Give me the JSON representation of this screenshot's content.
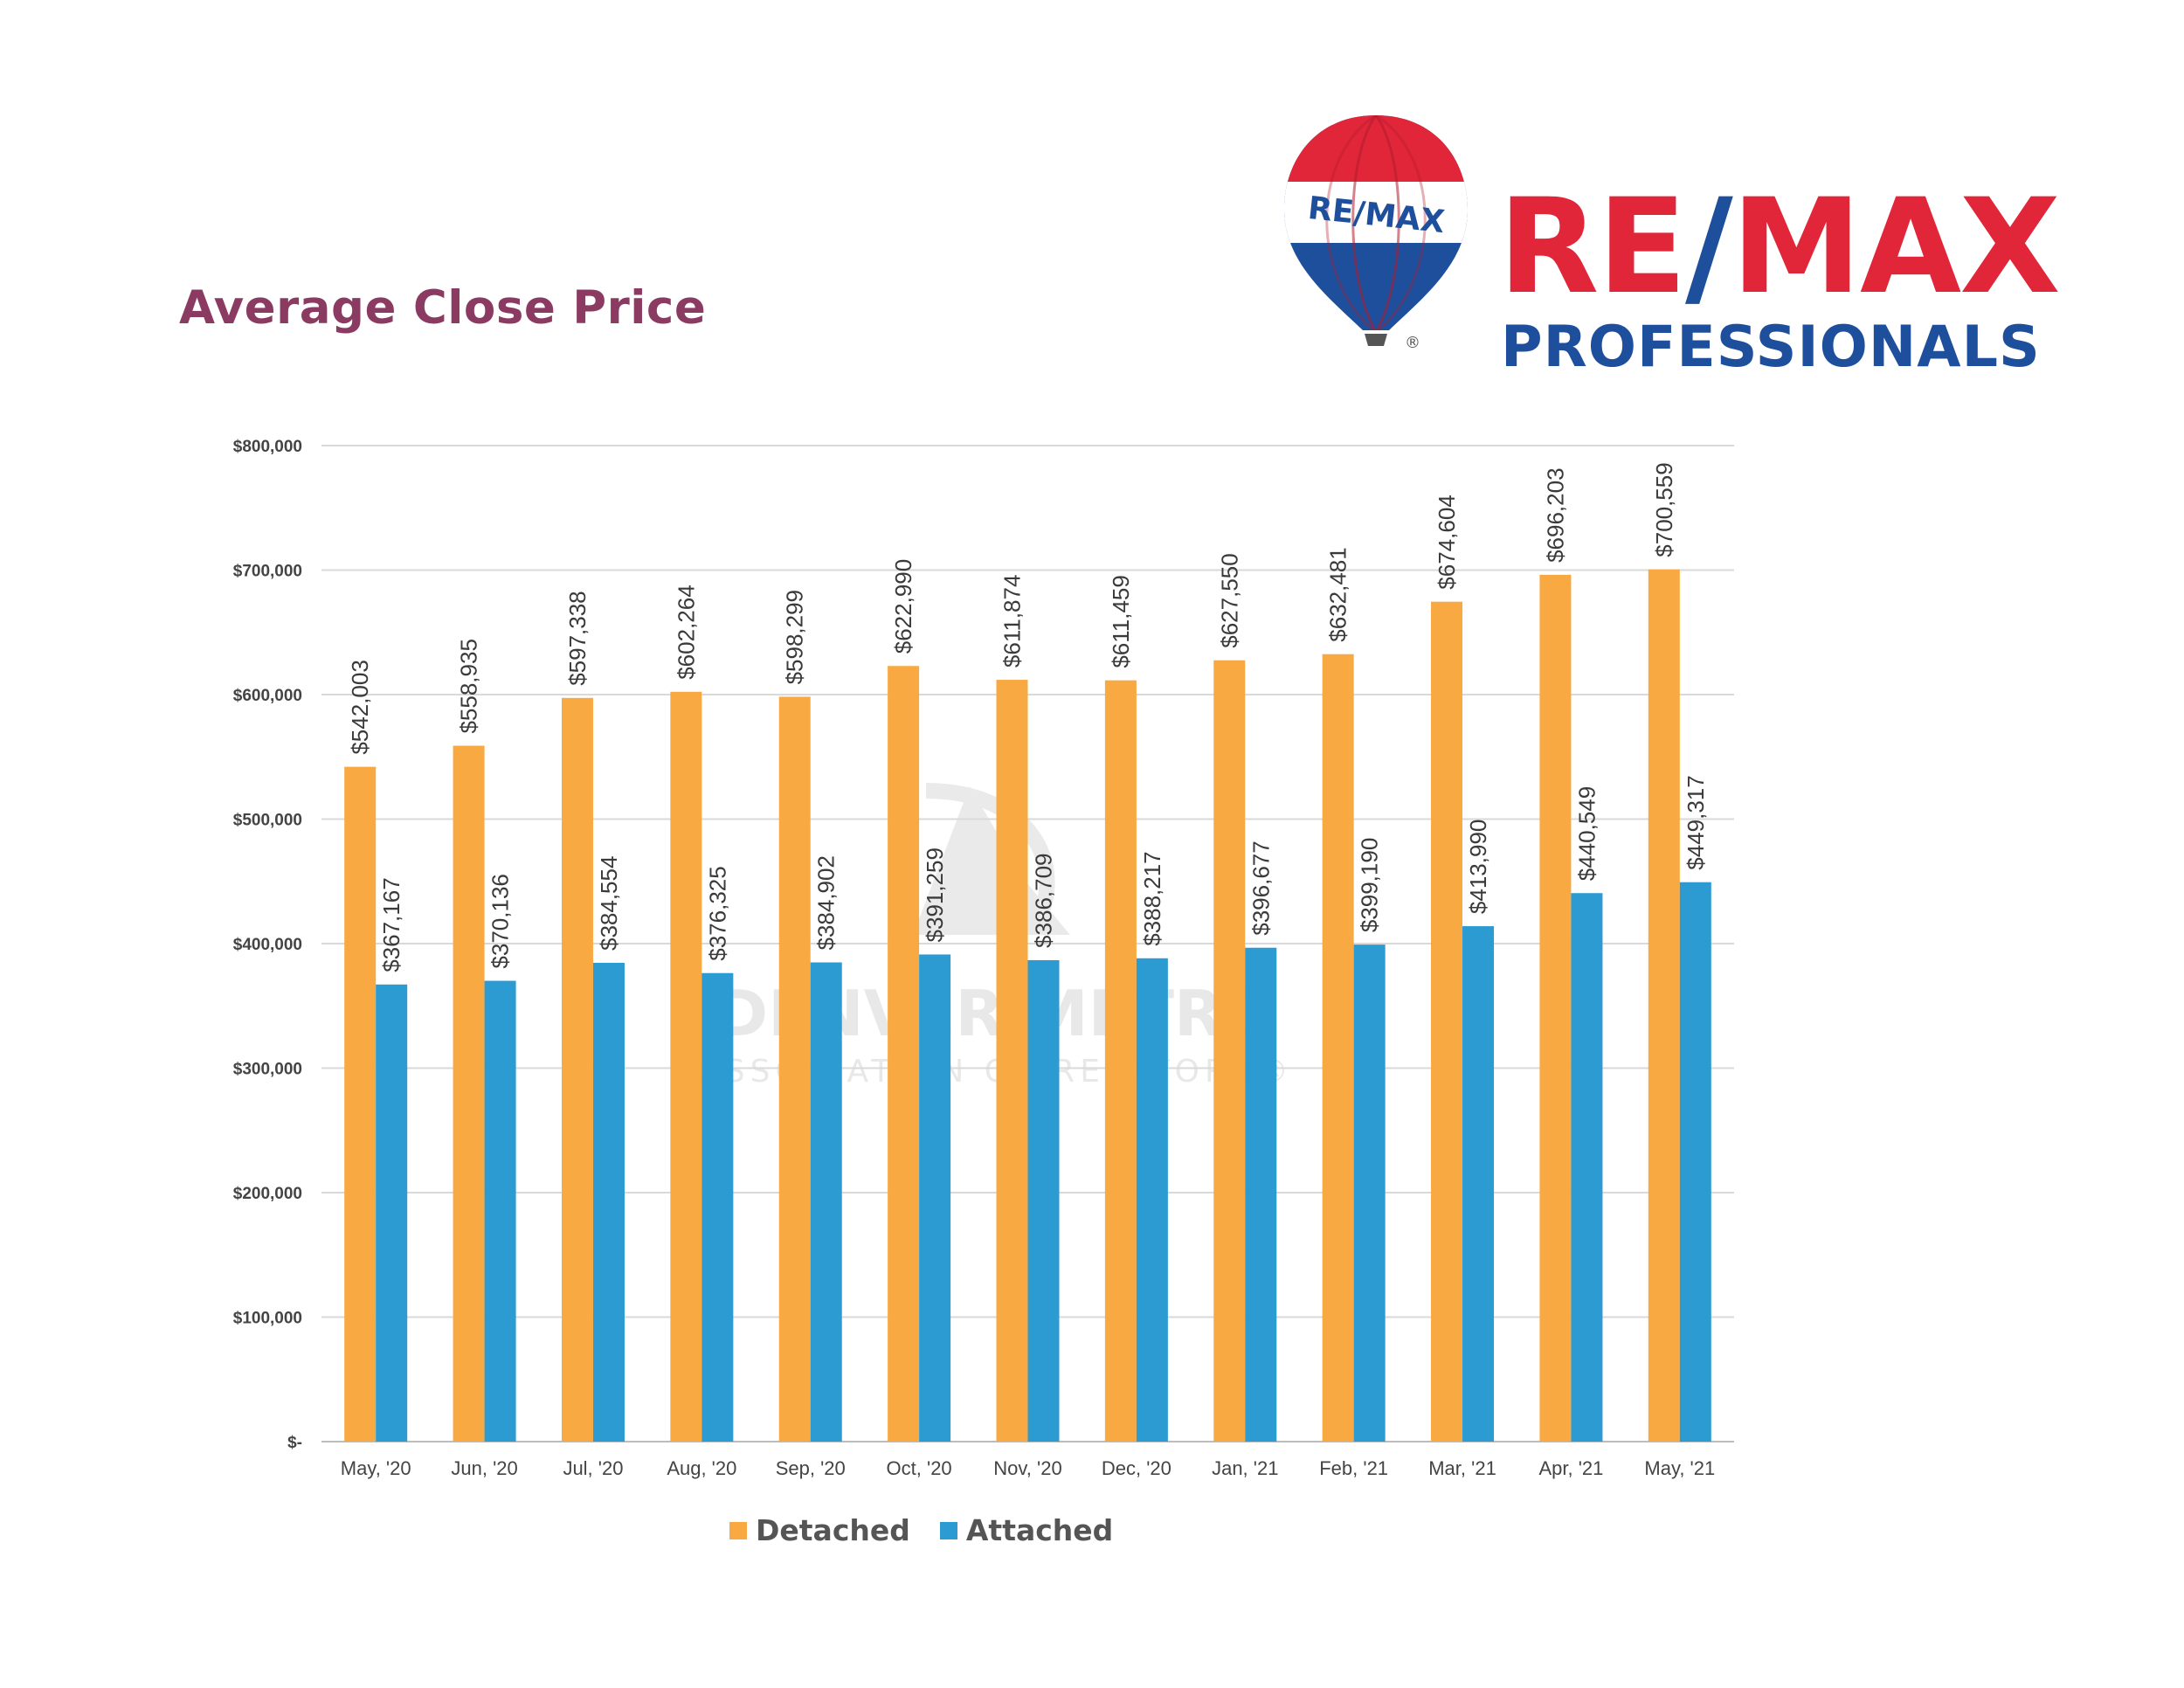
{
  "header": {
    "title": "Average Close Price"
  },
  "brand": {
    "balloon_text": "RE/MAX",
    "wordmark_re": "RE",
    "wordmark_slash": "/",
    "wordmark_max": "MAX",
    "subtitle": "PROFESSIONALS",
    "registered": "®",
    "colors": {
      "red": "#e1263a",
      "blue": "#1e4f9c"
    }
  },
  "watermark": {
    "line1": "DENVER METRO",
    "line2": "ASSOCIATION OF REALTORS®"
  },
  "chart_data": {
    "type": "bar",
    "title": "",
    "xlabel": "",
    "ylabel": "",
    "ylim": [
      0,
      800000
    ],
    "yticks": [
      0,
      100000,
      200000,
      300000,
      400000,
      500000,
      600000,
      700000,
      800000
    ],
    "ytick_labels": [
      "$-",
      "$100,000",
      "$200,000",
      "$300,000",
      "$400,000",
      "$500,000",
      "$600,000",
      "$700,000",
      "$800,000"
    ],
    "grid": true,
    "legend_position": "bottom",
    "categories": [
      "May, '20",
      "Jun, '20",
      "Jul, '20",
      "Aug, '20",
      "Sep, '20",
      "Oct, '20",
      "Nov, '20",
      "Dec, '20",
      "Jan, '21",
      "Feb, '21",
      "Mar, '21",
      "Apr, '21",
      "May, '21"
    ],
    "series": [
      {
        "name": "Detached",
        "color": "#f9a942",
        "values": [
          542003,
          558935,
          597338,
          602264,
          598299,
          622990,
          611874,
          611459,
          627550,
          632481,
          674604,
          696203,
          700559
        ],
        "labels": [
          "$542,003",
          "$558,935",
          "$597,338",
          "$602,264",
          "$598,299",
          "$622,990",
          "$611,874",
          "$611,459",
          "$627,550",
          "$632,481",
          "$674,604",
          "$696,203",
          "$700,559"
        ]
      },
      {
        "name": "Attached",
        "color": "#2b9bd2",
        "values": [
          367167,
          370136,
          384554,
          376325,
          384902,
          391259,
          386709,
          388217,
          396677,
          399190,
          413990,
          440549,
          449317
        ],
        "labels": [
          "$367,167",
          "$370,136",
          "$384,554",
          "$376,325",
          "$384,902",
          "$391,259",
          "$386,709",
          "$388,217",
          "$396,677",
          "$399,190",
          "$413,990",
          "$440,549",
          "$449,317"
        ]
      }
    ]
  }
}
